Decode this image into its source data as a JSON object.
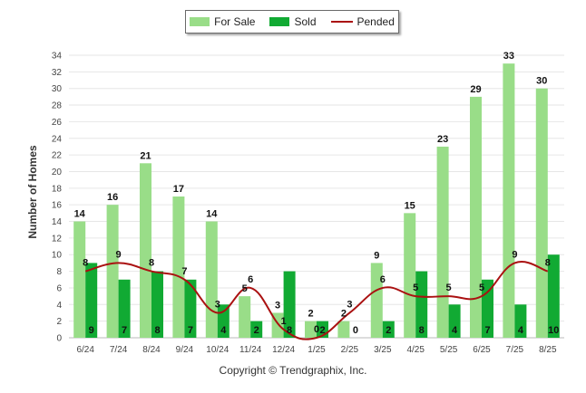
{
  "chart_data": {
    "type": "bar",
    "ylabel": "Number of Homes",
    "ylim": [
      0,
      34
    ],
    "yticks": [
      0,
      2,
      4,
      6,
      8,
      10,
      12,
      14,
      16,
      18,
      20,
      22,
      24,
      26,
      28,
      30,
      32,
      34
    ],
    "grid": true,
    "legend_position": "top-center",
    "categories": [
      "6/24",
      "7/24",
      "8/24",
      "9/24",
      "10/24",
      "11/24",
      "12/24",
      "1/25",
      "2/25",
      "3/25",
      "4/25",
      "5/25",
      "6/25",
      "7/25",
      "8/25"
    ],
    "series": [
      {
        "name": "For Sale",
        "kind": "bar",
        "color": "#99dd88",
        "values": [
          14,
          16,
          21,
          17,
          14,
          5,
          3,
          2,
          2,
          9,
          15,
          23,
          29,
          33,
          30
        ]
      },
      {
        "name": "Sold",
        "kind": "bar",
        "color": "#11aa33",
        "values": [
          9,
          7,
          8,
          7,
          4,
          2,
          8,
          2,
          0,
          2,
          8,
          4,
          7,
          4,
          10
        ]
      },
      {
        "name": "Pended",
        "kind": "line",
        "color": "#aa1111",
        "values": [
          8,
          9,
          8,
          7,
          3,
          6,
          1,
          0,
          3,
          6,
          5,
          5,
          5,
          9,
          8
        ]
      }
    ]
  },
  "copyright": "Copyright © Trendgraphix, Inc."
}
